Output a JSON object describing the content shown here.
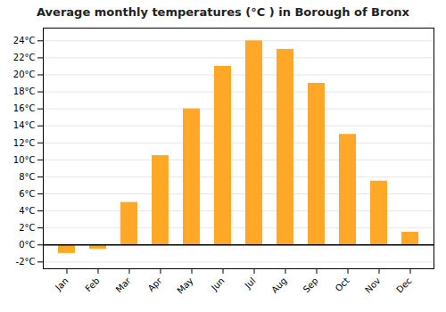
{
  "chart_data": {
    "type": "bar",
    "title": "Average monthly temperatures (°C ) in Borough of Bronx",
    "categories": [
      "Jan",
      "Feb",
      "Mar",
      "Apr",
      "May",
      "Jun",
      "Jul",
      "Aug",
      "Sep",
      "Oct",
      "Nov",
      "Dec"
    ],
    "values": [
      -1.0,
      -0.5,
      5.0,
      10.5,
      16.0,
      21.0,
      24.0,
      23.0,
      19.0,
      13.0,
      7.5,
      1.5
    ],
    "color": "#FFA726",
    "ylim": [
      -2.8,
      25.5
    ],
    "yticks": [
      {
        "value": -2,
        "label": "-2°C"
      },
      {
        "value": 0,
        "label": "0°C"
      },
      {
        "value": 2,
        "label": "2°C"
      },
      {
        "value": 4,
        "label": "4°C"
      },
      {
        "value": 6,
        "label": "6°C"
      },
      {
        "value": 8,
        "label": "8°C"
      },
      {
        "value": 10,
        "label": "10°C"
      },
      {
        "value": 12,
        "label": "12°C"
      },
      {
        "value": 14,
        "label": "14°C"
      },
      {
        "value": 16,
        "label": "16°C"
      },
      {
        "value": 18,
        "label": "18°C"
      },
      {
        "value": 20,
        "label": "20°C"
      },
      {
        "value": 22,
        "label": "22°C"
      },
      {
        "value": 24,
        "label": "24°C"
      }
    ],
    "grid": true
  }
}
